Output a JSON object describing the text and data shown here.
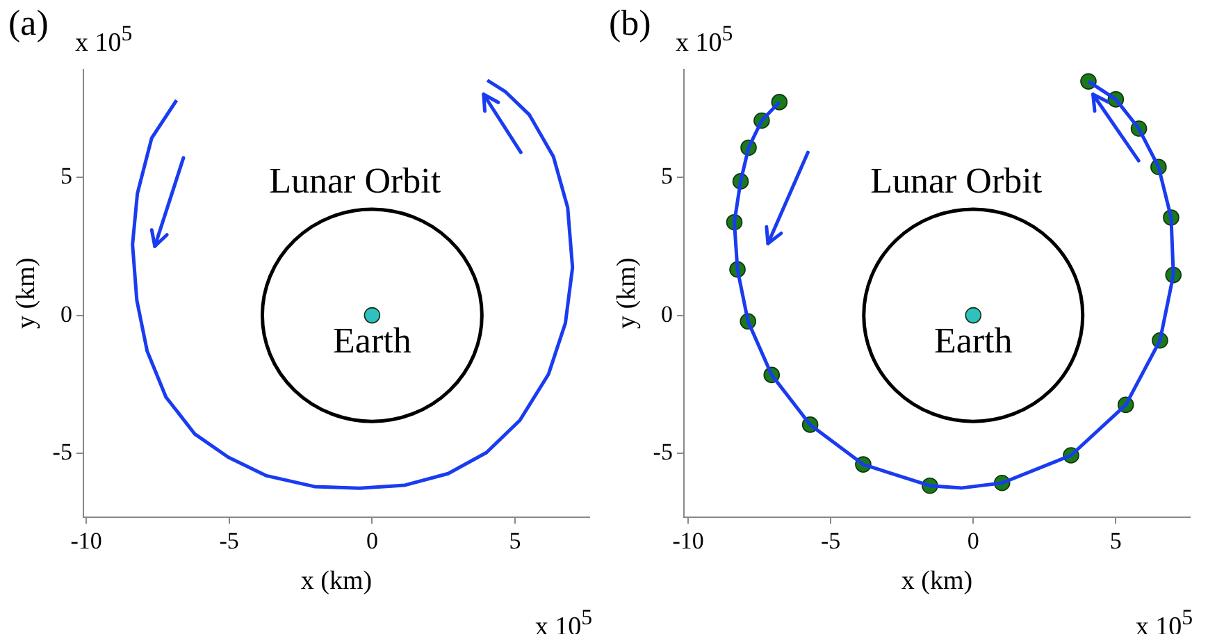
{
  "chart_data": [
    {
      "type": "line",
      "title": "(a)",
      "xlabel": "x (km)",
      "ylabel": "y (km)",
      "xlim": [
        -10.1,
        7.6
      ],
      "xticks": [
        -10,
        -5,
        0,
        5
      ],
      "ylim": [
        -7.3,
        8.9
      ],
      "yticks": [
        -5,
        0,
        5
      ],
      "grid": false,
      "series": [
        {
          "color": "#1a3cf0",
          "x": [
            -6.84,
            -7.71,
            -8.21,
            -8.38,
            -8.23,
            -7.87,
            -7.21,
            -6.2,
            -5.03,
            -3.69,
            -2.02,
            -0.43,
            1.15,
            2.66,
            4.0,
            5.17,
            6.17,
            6.76,
            7.01,
            6.84,
            6.34,
            5.5,
            4.67,
            4.03
          ],
          "values": [
            7.79,
            6.42,
            4.41,
            2.56,
            0.55,
            -1.29,
            -2.96,
            -4.3,
            -5.14,
            -5.81,
            -6.2,
            -6.26,
            -6.15,
            -5.73,
            -4.97,
            -3.8,
            -2.13,
            -0.28,
            1.73,
            3.9,
            5.75,
            7.26,
            8.09,
            8.51
          ]
        },
        {
          "type": "scatter",
          "color": "#30c0c0",
          "marker": "circle",
          "x": [
            0
          ],
          "values": [
            0
          ]
        }
      ],
      "annotations": [
        "x 10$^{5}$",
        "x 10$^{5}$",
        "Lunar Orbit",
        "Earth"
      ]
    },
    {
      "type": "line",
      "title": "(b)",
      "xlabel": "x (km)",
      "ylabel": "y (km)",
      "xlim": [
        -10.15,
        7.6
      ],
      "xticks": [
        -10,
        -5,
        0,
        5
      ],
      "ylim": [
        -7.3,
        8.9
      ],
      "yticks": [
        -5,
        0,
        5
      ],
      "grid": false,
      "series": [
        {
          "color": "#1a3cf0",
          "x": [
            -6.8,
            -7.42,
            -7.88,
            -8.16,
            -8.38,
            -8.27,
            -7.9,
            -7.07,
            -5.72,
            -3.86,
            -1.52,
            -0.4,
            1.01,
            3.43,
            5.35,
            6.55,
            7.02,
            6.94,
            6.5,
            5.81,
            5.0,
            4.04
          ],
          "values": [
            7.72,
            7.05,
            6.07,
            4.85,
            3.37,
            1.66,
            -0.22,
            -2.16,
            -3.96,
            -5.4,
            -6.17,
            -6.25,
            -6.07,
            -5.07,
            -3.24,
            -0.91,
            1.46,
            3.54,
            5.37,
            6.76,
            7.82,
            8.47
          ]
        },
        {
          "type": "scatter",
          "color": "#1a7a1a",
          "marker": "circle",
          "x": [
            -6.8,
            -7.42,
            -7.88,
            -8.16,
            -8.38,
            -8.27,
            -7.9,
            -7.07,
            -5.72,
            -3.86,
            -1.52,
            1.01,
            3.43,
            5.35,
            6.55,
            7.02,
            6.94,
            6.5,
            5.81,
            5.0,
            4.04
          ],
          "values": [
            7.72,
            7.05,
            6.07,
            4.85,
            3.37,
            1.66,
            -0.22,
            -2.16,
            -3.96,
            -5.4,
            -6.17,
            -6.07,
            -5.07,
            -3.24,
            -0.91,
            1.46,
            3.54,
            5.37,
            6.76,
            7.82,
            8.47
          ]
        },
        {
          "type": "scatter",
          "color": "#30c0c0",
          "marker": "circle",
          "x": [
            0
          ],
          "values": [
            0
          ]
        }
      ],
      "annotations": [
        "x 10$^{5}$",
        "x 10$^{5}$",
        "Lunar Orbit",
        "Earth"
      ]
    }
  ]
}
